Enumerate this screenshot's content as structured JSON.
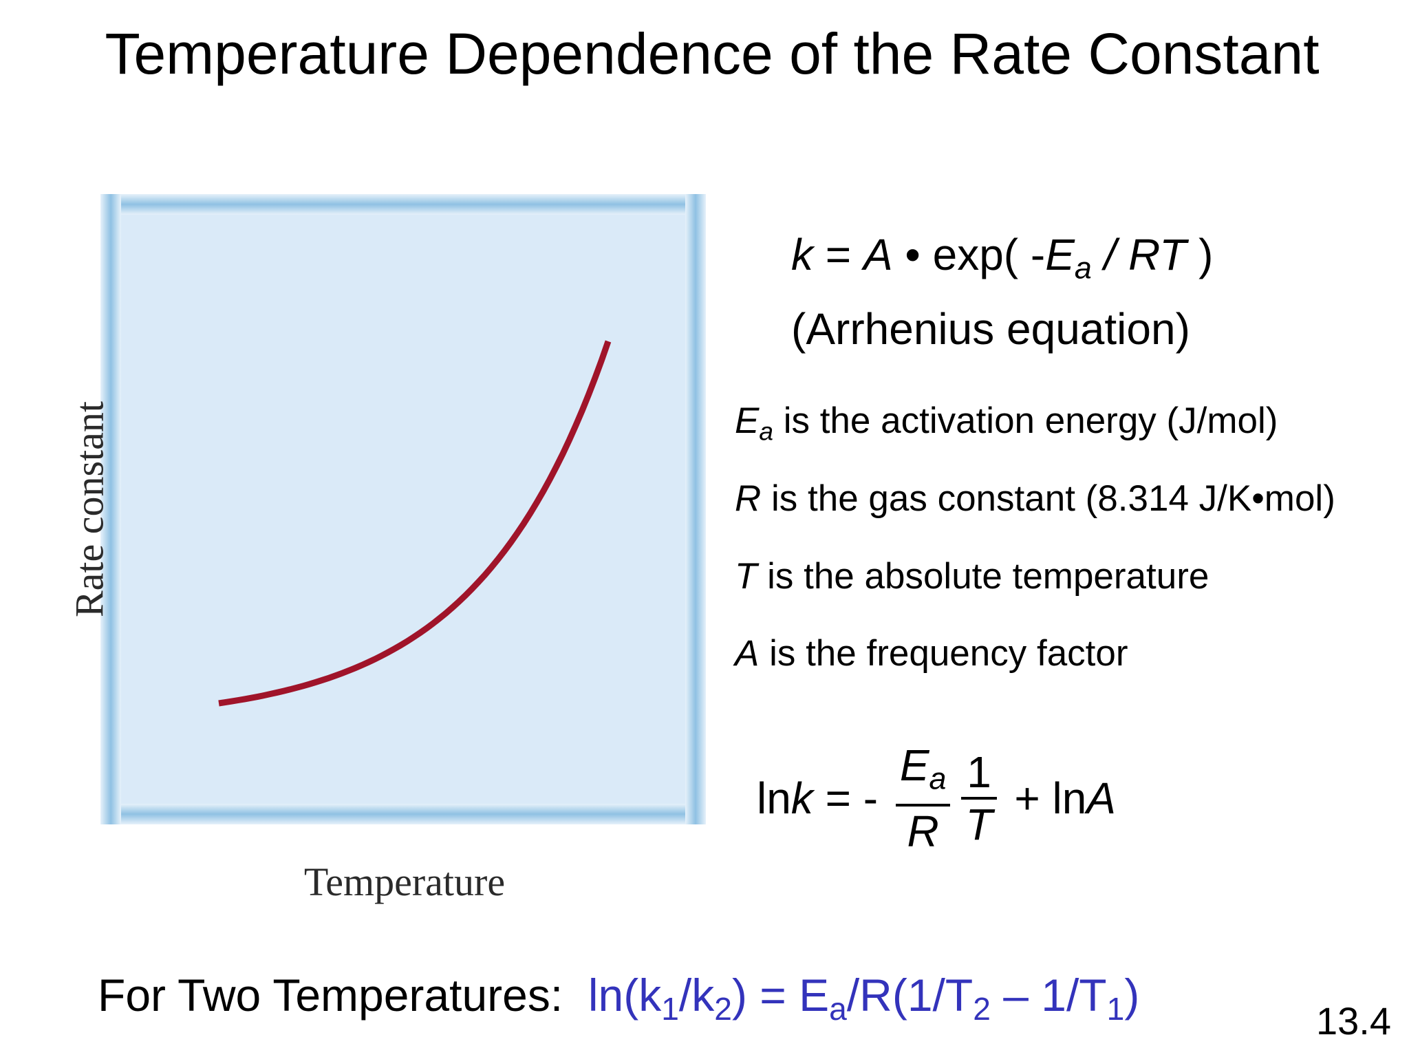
{
  "title": "Temperature Dependence of the Rate Constant",
  "chart_data": {
    "type": "line",
    "xlabel": "Temperature",
    "ylabel": "Rate constant",
    "curve_color": "#a0142a",
    "panel_color": "#daeaf8",
    "frame_color": "#8fc1e3"
  },
  "equation": {
    "k": "k",
    "eq": " = ",
    "A": "A",
    "dot": " • exp( -",
    "E": "E",
    "a": "a",
    "slash": " / ",
    "RT": "RT",
    "close": " )",
    "name": "(Arrhenius equation)"
  },
  "definitions": [
    {
      "symbol": "E",
      "sub": "a",
      "text": " is the activation energy (J/mol)"
    },
    {
      "symbol": "R",
      "sub": "",
      "text": " is the gas constant (8.314 J/K•mol)"
    },
    {
      "symbol": "T",
      "sub": "",
      "text": " is the absolute temperature"
    },
    {
      "symbol": "A",
      "sub": "",
      "text": " is the frequency factor"
    }
  ],
  "ln_equation": {
    "ln": "ln",
    "k": "k",
    "eq": " = - ",
    "num1": "E",
    "num1_sub": "a",
    "den1": "R",
    "num2": "1",
    "den2": "T",
    "plus": " + ln",
    "A": "A"
  },
  "two_temps": {
    "label": "For Two Temperatures:  ",
    "p1": "ln(k",
    "s1": "1",
    "p2": "/k",
    "s2": "2",
    "p3": ") = E",
    "s3": "a",
    "p4": "/R(1/T",
    "s4": "2",
    "p5": " – 1/T",
    "s5": "1",
    "p6": ")"
  },
  "slide_number": "13.4"
}
